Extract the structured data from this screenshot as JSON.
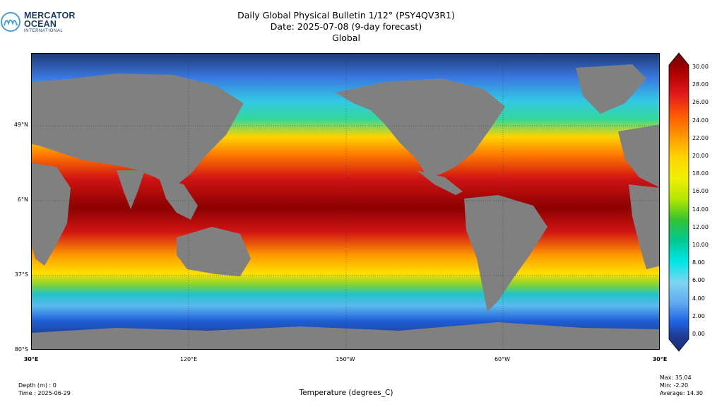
{
  "logo": {
    "line1": "MERCATOR",
    "line2": "OCEAN",
    "line3": "INTERNATIONAL",
    "color": "#1b3a5c"
  },
  "title": {
    "line1": "Daily Global Physical Bulletin 1/12° (PSY4QV3R1)",
    "line2": "Date: 2025-07-08 (9-day forecast)",
    "line3": "Global"
  },
  "map": {
    "variable": "Temperature (degrees_C)",
    "land_color": "#808080",
    "latitude_labels": [
      "49°N",
      "6°N",
      "37°S",
      "80°S"
    ],
    "longitude_labels": [
      "30°E",
      "120°E",
      "150°W",
      "60°W",
      "30°E"
    ]
  },
  "colorbar": {
    "ticks": [
      "30.00",
      "28.00",
      "26.00",
      "24.00",
      "22.00",
      "20.00",
      "18.00",
      "16.00",
      "14.00",
      "12.00",
      "10.00",
      "8.00",
      "6.00",
      "4.00",
      "2.00",
      "0.00"
    ],
    "colors_top_to_bottom": [
      "#6b0000",
      "#b30000",
      "#e31a1c",
      "#ff5a00",
      "#ff9900",
      "#ffd400",
      "#f0f000",
      "#b4e600",
      "#33c233",
      "#00c896",
      "#00e6e6",
      "#7fd4f0",
      "#5fa8f0",
      "#1e64e6",
      "#1e3c96",
      "#1a2f6a"
    ]
  },
  "info": {
    "depth": "Depth (m) : 0",
    "time": "Time : 2025-06-29",
    "max": "Max: 35.04",
    "min": "Min: -2.20",
    "average": "Average: 14.30"
  }
}
